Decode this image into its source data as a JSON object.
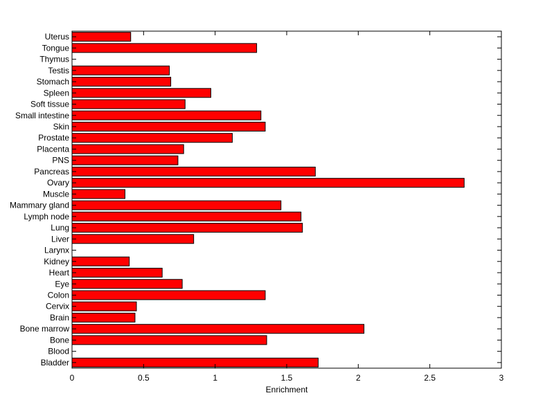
{
  "chart_data": {
    "type": "bar",
    "orientation": "horizontal",
    "categories": [
      "Bladder",
      "Blood",
      "Bone",
      "Bone marrow",
      "Brain",
      "Cervix",
      "Colon",
      "Eye",
      "Heart",
      "Kidney",
      "Larynx",
      "Liver",
      "Lung",
      "Lymph node",
      "Mammary gland",
      "Muscle",
      "Ovary",
      "Pancreas",
      "PNS",
      "Placenta",
      "Prostate",
      "Skin",
      "Small intestine",
      "Soft tissue",
      "Spleen",
      "Stomach",
      "Testis",
      "Thymus",
      "Tongue",
      "Uterus"
    ],
    "values": [
      1.72,
      0,
      1.36,
      2.04,
      0.44,
      0.45,
      1.35,
      0.77,
      0.63,
      0.4,
      0,
      0.85,
      1.61,
      1.6,
      1.46,
      0.37,
      2.74,
      1.7,
      0.74,
      0.78,
      1.12,
      1.35,
      1.32,
      0.79,
      0.97,
      0.69,
      0.68,
      0,
      1.29,
      0.41
    ],
    "title": "",
    "xlabel": "Enrichment",
    "ylabel": "",
    "xlim": [
      0,
      3
    ],
    "xticks": [
      0,
      0.5,
      1,
      1.5,
      2,
      2.5,
      3
    ],
    "xtick_labels": [
      "0",
      "0.5",
      "1",
      "1.5",
      "2",
      "2.5",
      "3"
    ],
    "grid": false,
    "legend": "none",
    "bar_color": "#ff0000",
    "bar_edge_color": "#000000"
  }
}
